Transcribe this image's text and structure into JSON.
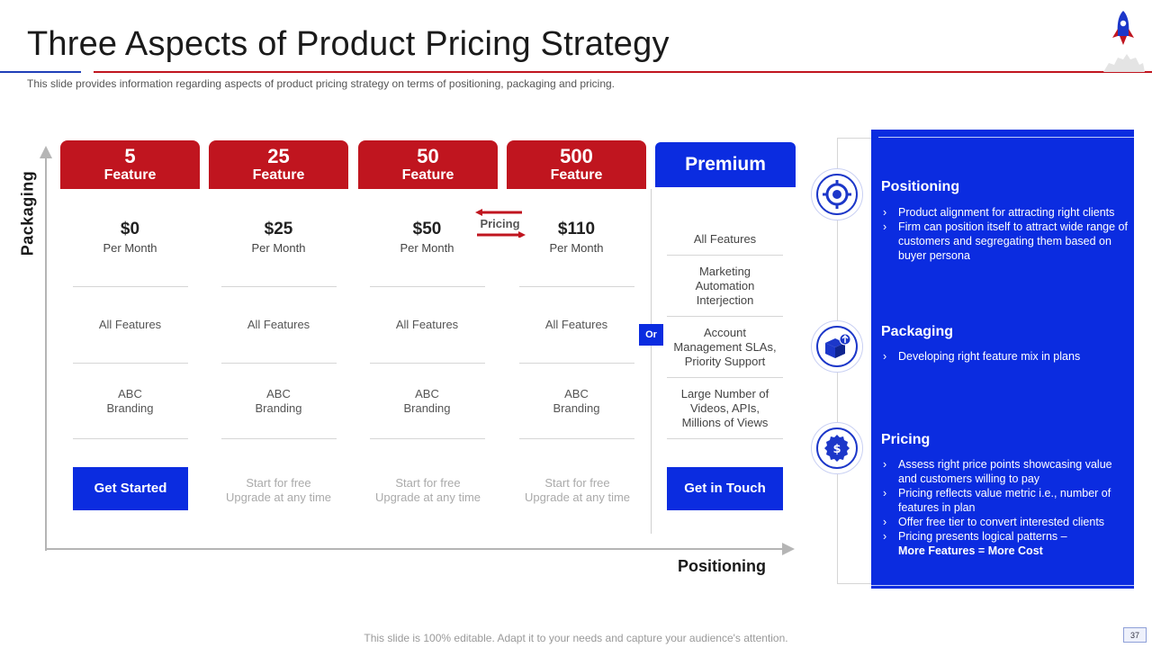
{
  "header": {
    "title": "Three Aspects of Product Pricing Strategy",
    "subtitle": "This slide provides information regarding aspects of product pricing strategy on terms of positioning, packaging and pricing."
  },
  "axes": {
    "y_label": "Packaging",
    "x_label": "Positioning"
  },
  "pricing_arrow_label": "Pricing",
  "or_label": "Or",
  "plans": [
    {
      "count": "5",
      "label": "Feature",
      "price": "$0",
      "period": "Per Month",
      "features": "All Features",
      "branding": [
        "ABC",
        "Branding"
      ],
      "cta": "Get Started"
    },
    {
      "count": "25",
      "label": "Feature",
      "price": "$25",
      "period": "Per Month",
      "features": "All Features",
      "branding": [
        "ABC",
        "Branding"
      ],
      "cta_lines": [
        "Start for free",
        "Upgrade  at any time"
      ]
    },
    {
      "count": "50",
      "label": "Feature",
      "price": "$50",
      "period": "Per Month",
      "features": "All Features",
      "branding": [
        "ABC",
        "Branding"
      ],
      "cta_lines": [
        "Start for free",
        "Upgrade  at any time"
      ]
    },
    {
      "count": "500",
      "label": "Feature",
      "price": "$110",
      "period": "Per Month",
      "features": "All Features",
      "branding": [
        "ABC",
        "Branding"
      ],
      "cta_lines": [
        "Start for free",
        "Upgrade  at any time"
      ]
    }
  ],
  "premium": {
    "title": "Premium",
    "rows": [
      [
        "All Features"
      ],
      [
        "Marketing",
        "Automation",
        "Interjection"
      ],
      [
        "Account",
        "Management  SLAs,",
        "Priority Support"
      ],
      [
        "Large  Number  of",
        "Videos, APIs,",
        "Millions of Views"
      ]
    ],
    "cta": "Get in Touch"
  },
  "panel": {
    "sections": [
      {
        "title": "Positioning",
        "icon": "target-icon",
        "bullets": [
          "Product alignment for attracting right clients",
          "Firm can position itself to attract wide range of customers and segregating them based on buyer persona"
        ]
      },
      {
        "title": "Packaging",
        "icon": "box-icon",
        "bullets": [
          "Developing  right feature mix in plans"
        ]
      },
      {
        "title": "Pricing",
        "icon": "dollar-badge-icon",
        "bullets": [
          "Assess right price points showcasing value  and customers willing to pay",
          "Pricing reflects value  metric i.e., number of features in plan",
          "Offer free tier to convert  interested clients",
          "Pricing presents logical patterns –"
        ],
        "emphasis": "More Features = More Cost"
      }
    ]
  },
  "footer": {
    "text": "This slide is 100% editable. Adapt it to your needs and capture your audience's attention.",
    "page": "37"
  },
  "colors": {
    "red": "#c0151f",
    "blue": "#0b2ce0",
    "gray_axis": "#b5b5b5"
  }
}
